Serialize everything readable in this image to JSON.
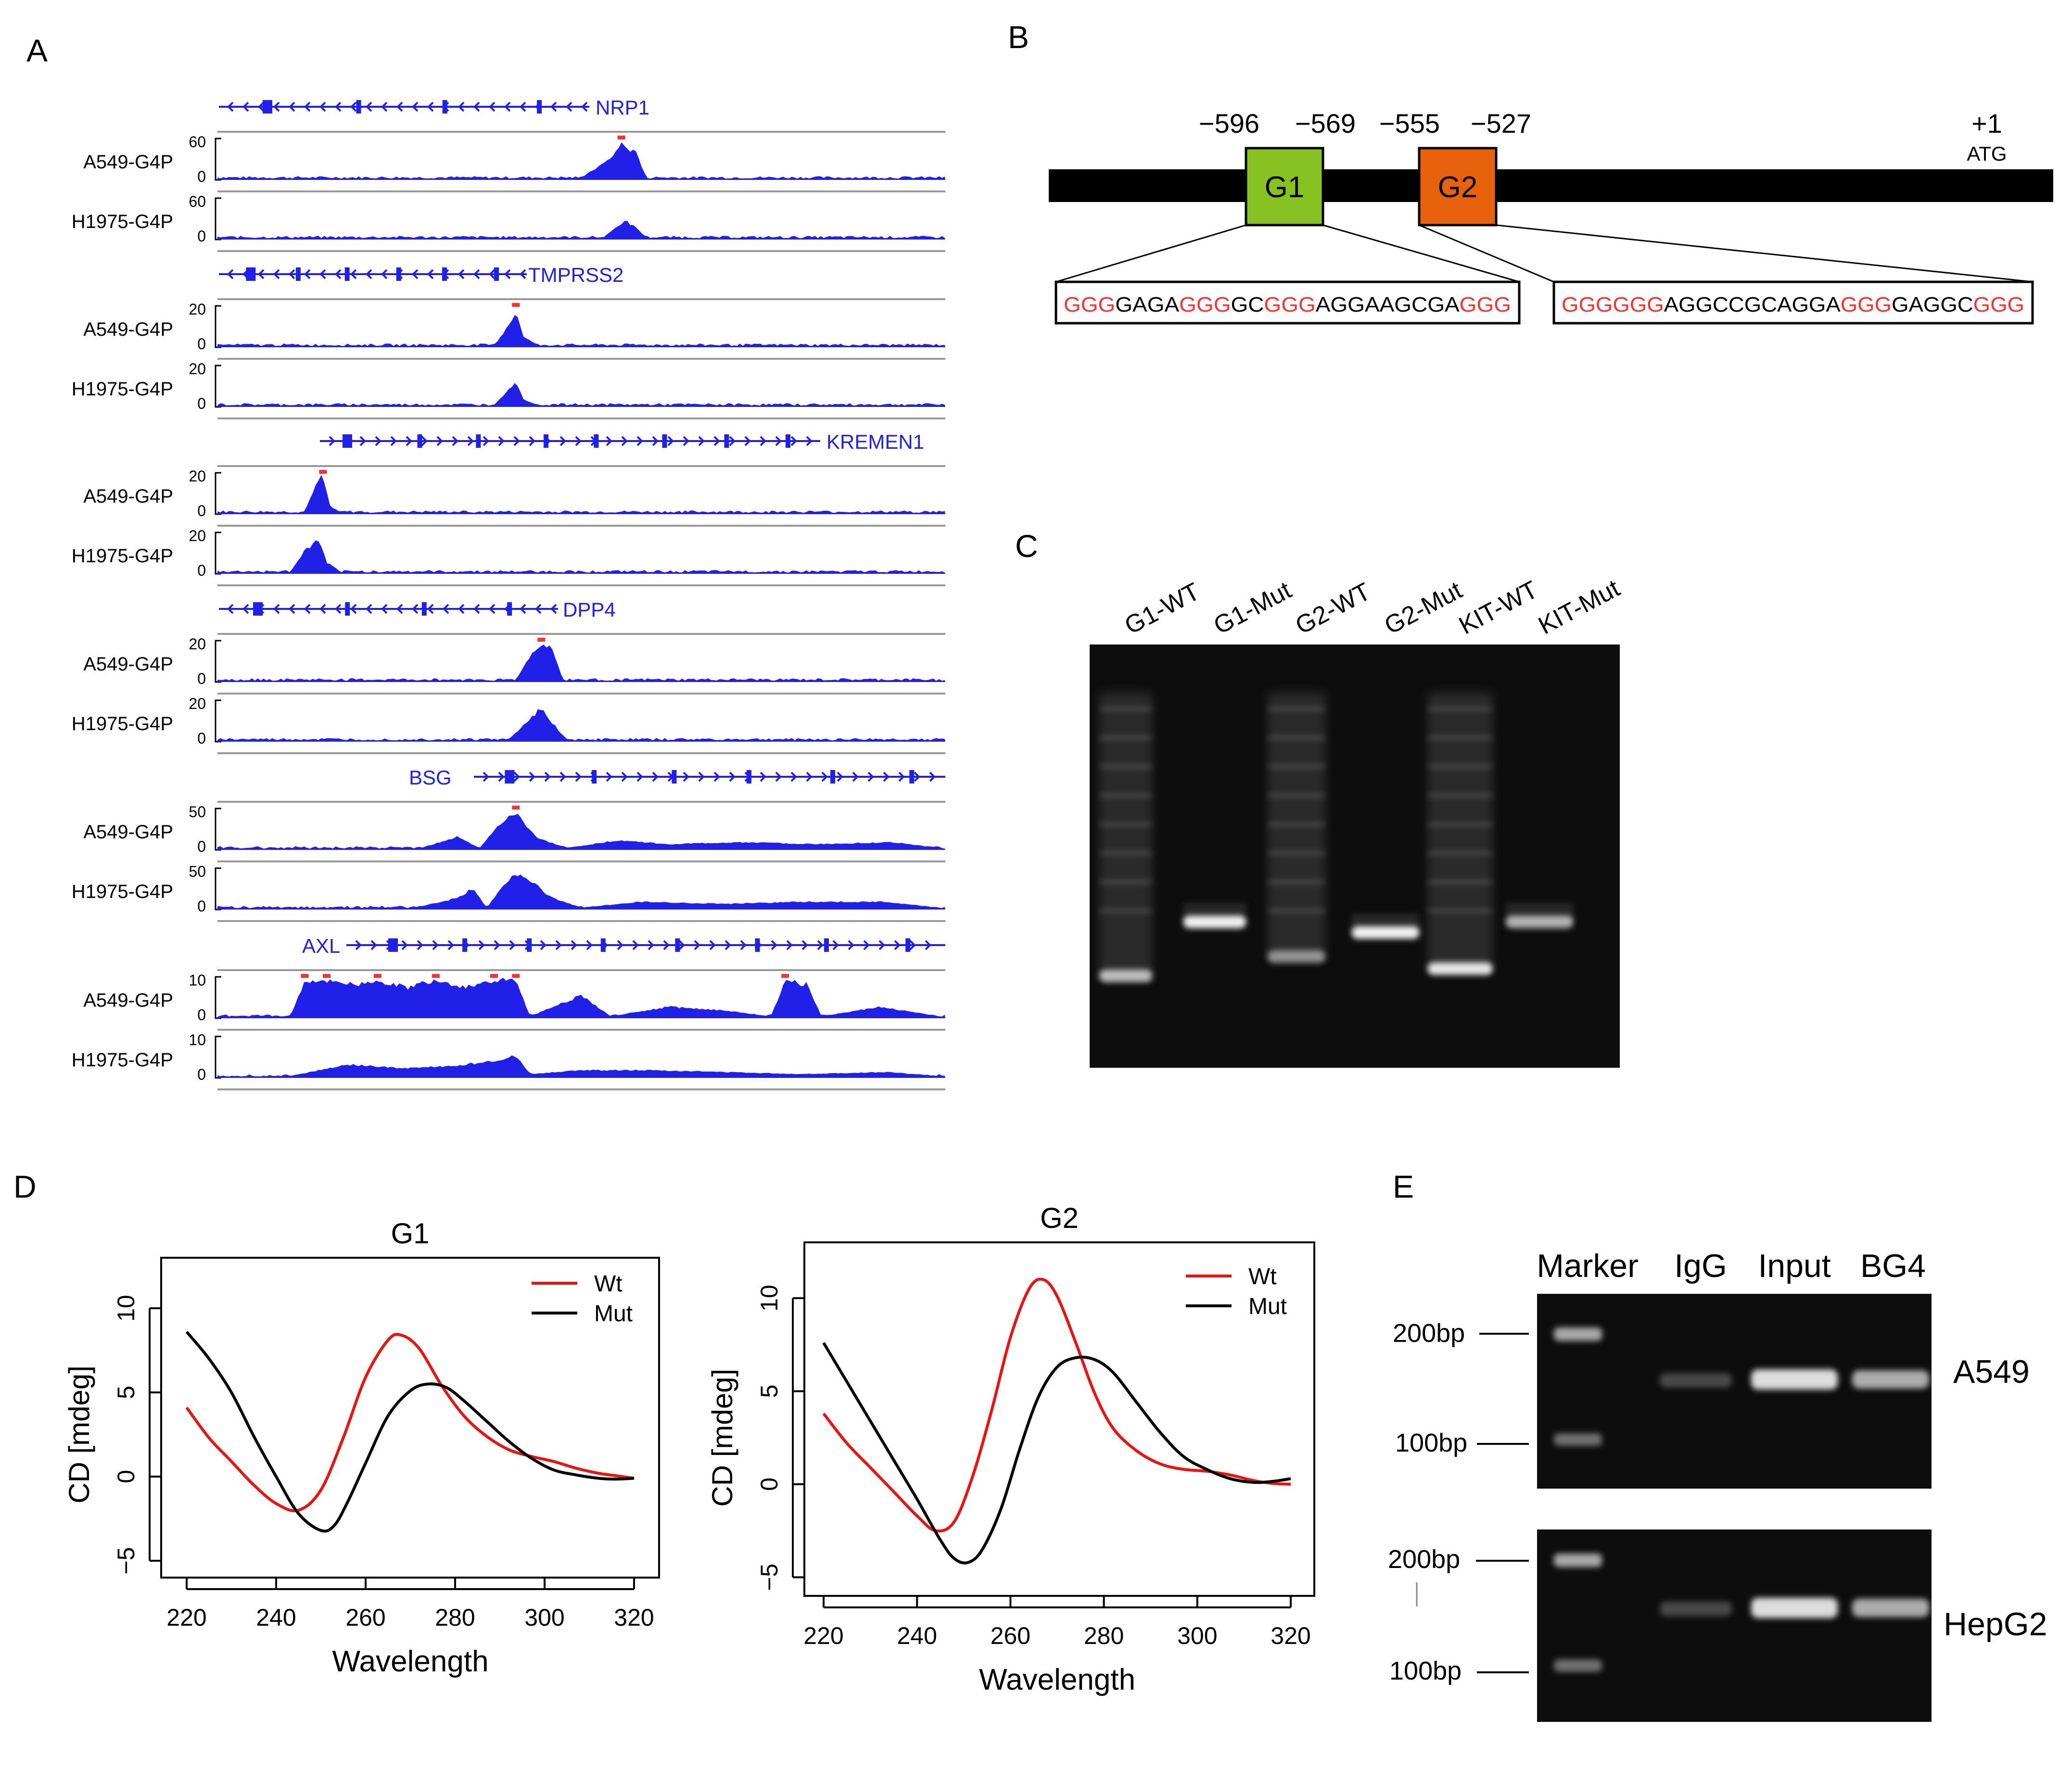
{
  "figure": {
    "panel_labels": [
      "A",
      "B",
      "C",
      "D",
      "E"
    ]
  },
  "colors": {
    "track_blue": "#2020e8",
    "peak_red": "#ff3030",
    "wt_red": "#ee1111",
    "mut_black": "#000000",
    "g1_green": "#86c221",
    "g2_orange": "#e8620e"
  },
  "panel_a": {
    "genes": [
      {
        "name": "NRP1",
        "strand": "minus",
        "scale": "60",
        "tracks": [
          {
            "label": "A549-G4P",
            "peaks": [
              [
                0.5,
                0.06
              ],
              [
                0.54,
                0.55
              ],
              [
                0.555,
                0.95
              ],
              [
                0.565,
                0.8
              ],
              [
                0.575,
                0.7
              ],
              [
                0.59,
                0.05
              ]
            ]
          },
          {
            "label": "H1975-G4P",
            "peaks": [
              [
                0.53,
                0.05
              ],
              [
                0.55,
                0.35
              ],
              [
                0.56,
                0.5
              ],
              [
                0.575,
                0.3
              ],
              [
                0.59,
                0.05
              ]
            ]
          }
        ]
      },
      {
        "name": "TMPRSS2",
        "strand": "minus",
        "scale": "20",
        "tracks": [
          {
            "label": "A549-G4P",
            "peaks": [
              [
                0.38,
                0.05
              ],
              [
                0.4,
                0.55
              ],
              [
                0.41,
                0.95
              ],
              [
                0.42,
                0.3
              ],
              [
                0.44,
                0.05
              ]
            ]
          },
          {
            "label": "H1975-G4P",
            "peaks": [
              [
                0.38,
                0.05
              ],
              [
                0.4,
                0.45
              ],
              [
                0.41,
                0.7
              ],
              [
                0.42,
                0.2
              ],
              [
                0.44,
                0.05
              ]
            ]
          }
        ]
      },
      {
        "name": "KREMEN1",
        "strand": "plus",
        "scale": "20",
        "tracks": [
          {
            "label": "A549-G4P",
            "peaks": [
              [
                0.12,
                0.05
              ],
              [
                0.135,
                0.8
              ],
              [
                0.145,
                1.0
              ],
              [
                0.155,
                0.2
              ],
              [
                0.17,
                0.05
              ]
            ]
          },
          {
            "label": "H1975-G4P",
            "peaks": [
              [
                0.1,
                0.05
              ],
              [
                0.12,
                0.6
              ],
              [
                0.14,
                0.9
              ],
              [
                0.15,
                0.3
              ],
              [
                0.17,
                0.05
              ]
            ]
          }
        ]
      },
      {
        "name": "DPP4",
        "strand": "minus",
        "scale": "20",
        "tracks": [
          {
            "label": "A549-G4P",
            "peaks": [
              [
                0.41,
                0.05
              ],
              [
                0.43,
                0.7
              ],
              [
                0.445,
                1.0
              ],
              [
                0.46,
                0.9
              ],
              [
                0.475,
                0.05
              ]
            ]
          },
          {
            "label": "H1975-G4P",
            "peaks": [
              [
                0.4,
                0.05
              ],
              [
                0.43,
                0.6
              ],
              [
                0.445,
                0.9
              ],
              [
                0.46,
                0.5
              ],
              [
                0.48,
                0.05
              ]
            ]
          }
        ]
      },
      {
        "name": "BSG",
        "strand": "plus",
        "scale": "50",
        "tracks": [
          {
            "label": "A549-G4P",
            "peaks": [
              [
                0.28,
                0.05
              ],
              [
                0.33,
                0.35
              ],
              [
                0.36,
                0.05
              ],
              [
                0.39,
                0.7
              ],
              [
                0.41,
                0.95
              ],
              [
                0.44,
                0.3
              ],
              [
                0.48,
                0.05
              ],
              [
                0.55,
                0.25
              ],
              [
                0.62,
                0.15
              ],
              [
                0.72,
                0.2
              ],
              [
                0.82,
                0.15
              ],
              [
                0.93,
                0.2
              ],
              [
                0.99,
                0.05
              ]
            ]
          },
          {
            "label": "H1975-G4P",
            "peaks": [
              [
                0.27,
                0.05
              ],
              [
                0.33,
                0.3
              ],
              [
                0.35,
                0.55
              ],
              [
                0.37,
                0.05
              ],
              [
                0.4,
                0.8
              ],
              [
                0.42,
                0.9
              ],
              [
                0.46,
                0.3
              ],
              [
                0.5,
                0.05
              ],
              [
                0.58,
                0.2
              ],
              [
                0.7,
                0.15
              ],
              [
                0.8,
                0.2
              ],
              [
                0.92,
                0.2
              ],
              [
                0.99,
                0.05
              ]
            ]
          }
        ]
      },
      {
        "name": "AXL",
        "strand": "plus",
        "scale": "10",
        "tracks": [
          {
            "label": "A549-G4P",
            "peaks": [
              [
                0.1,
                0.05
              ],
              [
                0.12,
                0.95
              ],
              [
                0.15,
                1.0
              ],
              [
                0.19,
                0.85
              ],
              [
                0.22,
                1.0
              ],
              [
                0.26,
                0.8
              ],
              [
                0.3,
                1.0
              ],
              [
                0.34,
                0.8
              ],
              [
                0.38,
                1.0
              ],
              [
                0.41,
                0.95
              ],
              [
                0.43,
                0.05
              ],
              [
                0.5,
                0.6
              ],
              [
                0.54,
                0.05
              ],
              [
                0.62,
                0.3
              ],
              [
                0.7,
                0.2
              ],
              [
                0.76,
                0.05
              ],
              [
                0.78,
                0.95
              ],
              [
                0.81,
                0.9
              ],
              [
                0.83,
                0.05
              ],
              [
                0.91,
                0.3
              ],
              [
                0.99,
                0.05
              ]
            ]
          },
          {
            "label": "H1975-G4P",
            "peaks": [
              [
                0.1,
                0.05
              ],
              [
                0.18,
                0.35
              ],
              [
                0.25,
                0.25
              ],
              [
                0.32,
                0.3
              ],
              [
                0.38,
                0.45
              ],
              [
                0.41,
                0.6
              ],
              [
                0.43,
                0.1
              ],
              [
                0.5,
                0.2
              ],
              [
                0.6,
                0.2
              ],
              [
                0.7,
                0.15
              ],
              [
                0.8,
                0.1
              ],
              [
                0.92,
                0.15
              ],
              [
                0.99,
                0.05
              ]
            ]
          }
        ]
      }
    ]
  },
  "panel_b": {
    "g1_start": "−596",
    "g1_end": "−569",
    "g2_start": "−555",
    "g2_end": "−527",
    "g1_label": "G1",
    "g2_label": "G2",
    "tss_label": "+1",
    "atg_label": "ATG",
    "g1_sequence": [
      {
        "text": "GGG",
        "red": true
      },
      {
        "text": "GAGA",
        "red": false
      },
      {
        "text": "GGG",
        "red": true
      },
      {
        "text": "GC",
        "red": false
      },
      {
        "text": "GGG",
        "red": true
      },
      {
        "text": "AGGAAGCGA",
        "red": false
      },
      {
        "text": "GGG",
        "red": true
      }
    ],
    "g2_sequence": [
      {
        "text": "GGGGGG",
        "red": true
      },
      {
        "text": "AGGCCGCAGGA",
        "red": false
      },
      {
        "text": "GGG",
        "red": true
      },
      {
        "text": "GAGGC",
        "red": false
      },
      {
        "text": "GGG",
        "red": true
      }
    ]
  },
  "panel_c": {
    "lanes": [
      "G1-WT",
      "G1-Mut",
      "G2-WT",
      "G2-Mut",
      "KIT-WT",
      "KIT-Mut"
    ]
  },
  "panel_e": {
    "lanes": [
      "Marker",
      "IgG",
      "Input",
      "BG4"
    ],
    "marker_200": "200bp",
    "marker_100": "100bp",
    "cell_lines": [
      "A549",
      "HepG2"
    ]
  },
  "chart_data": [
    {
      "type": "line",
      "title": "G1",
      "xlabel": "Wavelength",
      "ylabel": "CD [mdeg]",
      "xlim": [
        220,
        320
      ],
      "ylim": [
        -6,
        13
      ],
      "xticks": [
        "220",
        "240",
        "260",
        "280",
        "300",
        "320"
      ],
      "yticks": [
        "10",
        "5",
        "0",
        "−5"
      ],
      "series": [
        {
          "name": "Wt",
          "color": "#ee1111",
          "x": [
            220,
            225,
            230,
            235,
            240,
            245,
            250,
            255,
            260,
            265,
            268,
            272,
            277,
            282,
            287,
            292,
            297,
            302,
            307,
            312,
            316,
            320
          ],
          "y": [
            4.1,
            2.3,
            0.9,
            -0.5,
            -1.6,
            -2.0,
            -0.8,
            2.3,
            5.9,
            8.1,
            8.4,
            7.6,
            5.4,
            3.6,
            2.4,
            1.6,
            1.2,
            0.9,
            0.5,
            0.2,
            0.05,
            -0.1
          ]
        },
        {
          "name": "Mut",
          "color": "#000000",
          "x": [
            220,
            225,
            230,
            235,
            240,
            245,
            250,
            253,
            256,
            260,
            265,
            270,
            274,
            278,
            282,
            287,
            292,
            297,
            302,
            307,
            312,
            316,
            320
          ],
          "y": [
            8.6,
            7.0,
            5.0,
            2.4,
            0.0,
            -2.2,
            -3.2,
            -2.9,
            -1.5,
            0.8,
            3.6,
            5.1,
            5.5,
            5.3,
            4.5,
            3.3,
            2.1,
            1.1,
            0.4,
            0.1,
            -0.1,
            -0.15,
            -0.1
          ]
        }
      ],
      "legend": "top-right"
    },
    {
      "type": "line",
      "title": "G2",
      "xlabel": "Wavelength",
      "ylabel": "CD [mdeg]",
      "xlim": [
        220,
        320
      ],
      "ylim": [
        -6,
        13
      ],
      "xticks": [
        "220",
        "240",
        "260",
        "280",
        "300",
        "320"
      ],
      "yticks": [
        "10",
        "5",
        "0",
        "−5"
      ],
      "series": [
        {
          "name": "Wt",
          "color": "#ee1111",
          "x": [
            220,
            225,
            230,
            235,
            240,
            244,
            248,
            252,
            256,
            260,
            264,
            267,
            270,
            274,
            278,
            282,
            287,
            292,
            297,
            302,
            307,
            312,
            316,
            320
          ],
          "y": [
            3.8,
            2.2,
            0.9,
            -0.4,
            -1.7,
            -2.5,
            -2.0,
            0.5,
            4.0,
            7.9,
            10.5,
            11.0,
            10.1,
            7.6,
            4.9,
            3.0,
            1.8,
            1.1,
            0.8,
            0.7,
            0.5,
            0.2,
            0.05,
            0.0
          ]
        },
        {
          "name": "Mut",
          "color": "#000000",
          "x": [
            220,
            225,
            230,
            235,
            240,
            245,
            248,
            251,
            254,
            258,
            262,
            266,
            270,
            274,
            278,
            282,
            287,
            292,
            297,
            302,
            307,
            312,
            316,
            320
          ],
          "y": [
            7.6,
            5.5,
            3.4,
            1.3,
            -0.8,
            -3.0,
            -4.0,
            -4.2,
            -3.5,
            -1.3,
            1.9,
            4.7,
            6.3,
            6.8,
            6.7,
            6.0,
            4.4,
            2.8,
            1.5,
            0.8,
            0.3,
            0.1,
            0.15,
            0.3
          ]
        }
      ],
      "legend": "top-right"
    }
  ]
}
